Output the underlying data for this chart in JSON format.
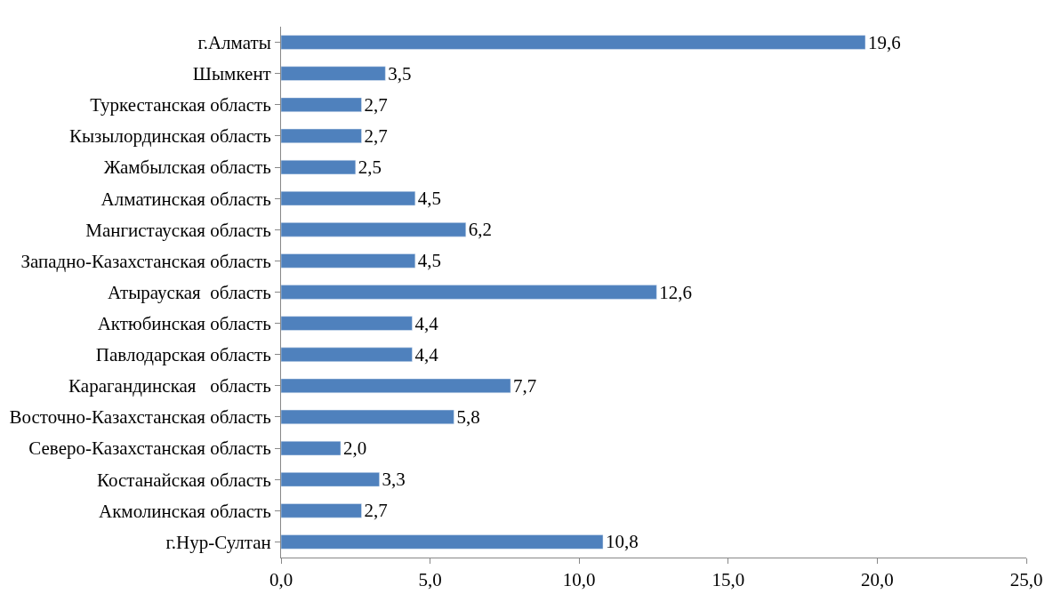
{
  "chart_data": {
    "type": "bar",
    "orientation": "horizontal",
    "categories": [
      "г.Алматы",
      "Шымкент",
      "Туркестанская область",
      "Кызылординская область",
      "Жамбылская область",
      "Алматинская область",
      "Мангистауская область",
      "Западно-Казахстанская область",
      "Атырауская  область",
      "Актюбинская область",
      "Павлодарская область",
      "Карагандинская   область",
      "Восточно-Казахстанская область",
      "Северо-Казахстанская область",
      "Костанайская область",
      "Акмолинская область",
      "г.Нур-Султан"
    ],
    "values": [
      19.6,
      3.5,
      2.7,
      2.7,
      2.5,
      4.5,
      6.2,
      4.5,
      12.6,
      4.4,
      4.4,
      7.7,
      5.8,
      2.0,
      3.3,
      2.7,
      10.8
    ],
    "value_labels": [
      "19,6",
      "3,5",
      "2,7",
      "2,7",
      "2,5",
      "4,5",
      "6,2",
      "4,5",
      "12,6",
      "4,4",
      "4,4",
      "7,7",
      "5,8",
      "2,0",
      "3,3",
      "2,7",
      "10,8"
    ],
    "color": "#4f81bd",
    "xlim": [
      0,
      25
    ],
    "xticks": [
      {
        "value": 0,
        "label": "0,0"
      },
      {
        "value": 5,
        "label": "5,0"
      },
      {
        "value": 10,
        "label": "10,0"
      },
      {
        "value": 15,
        "label": "15,0"
      },
      {
        "value": 20,
        "label": "20,0"
      },
      {
        "value": 25,
        "label": "25,0"
      }
    ],
    "legend": false
  }
}
